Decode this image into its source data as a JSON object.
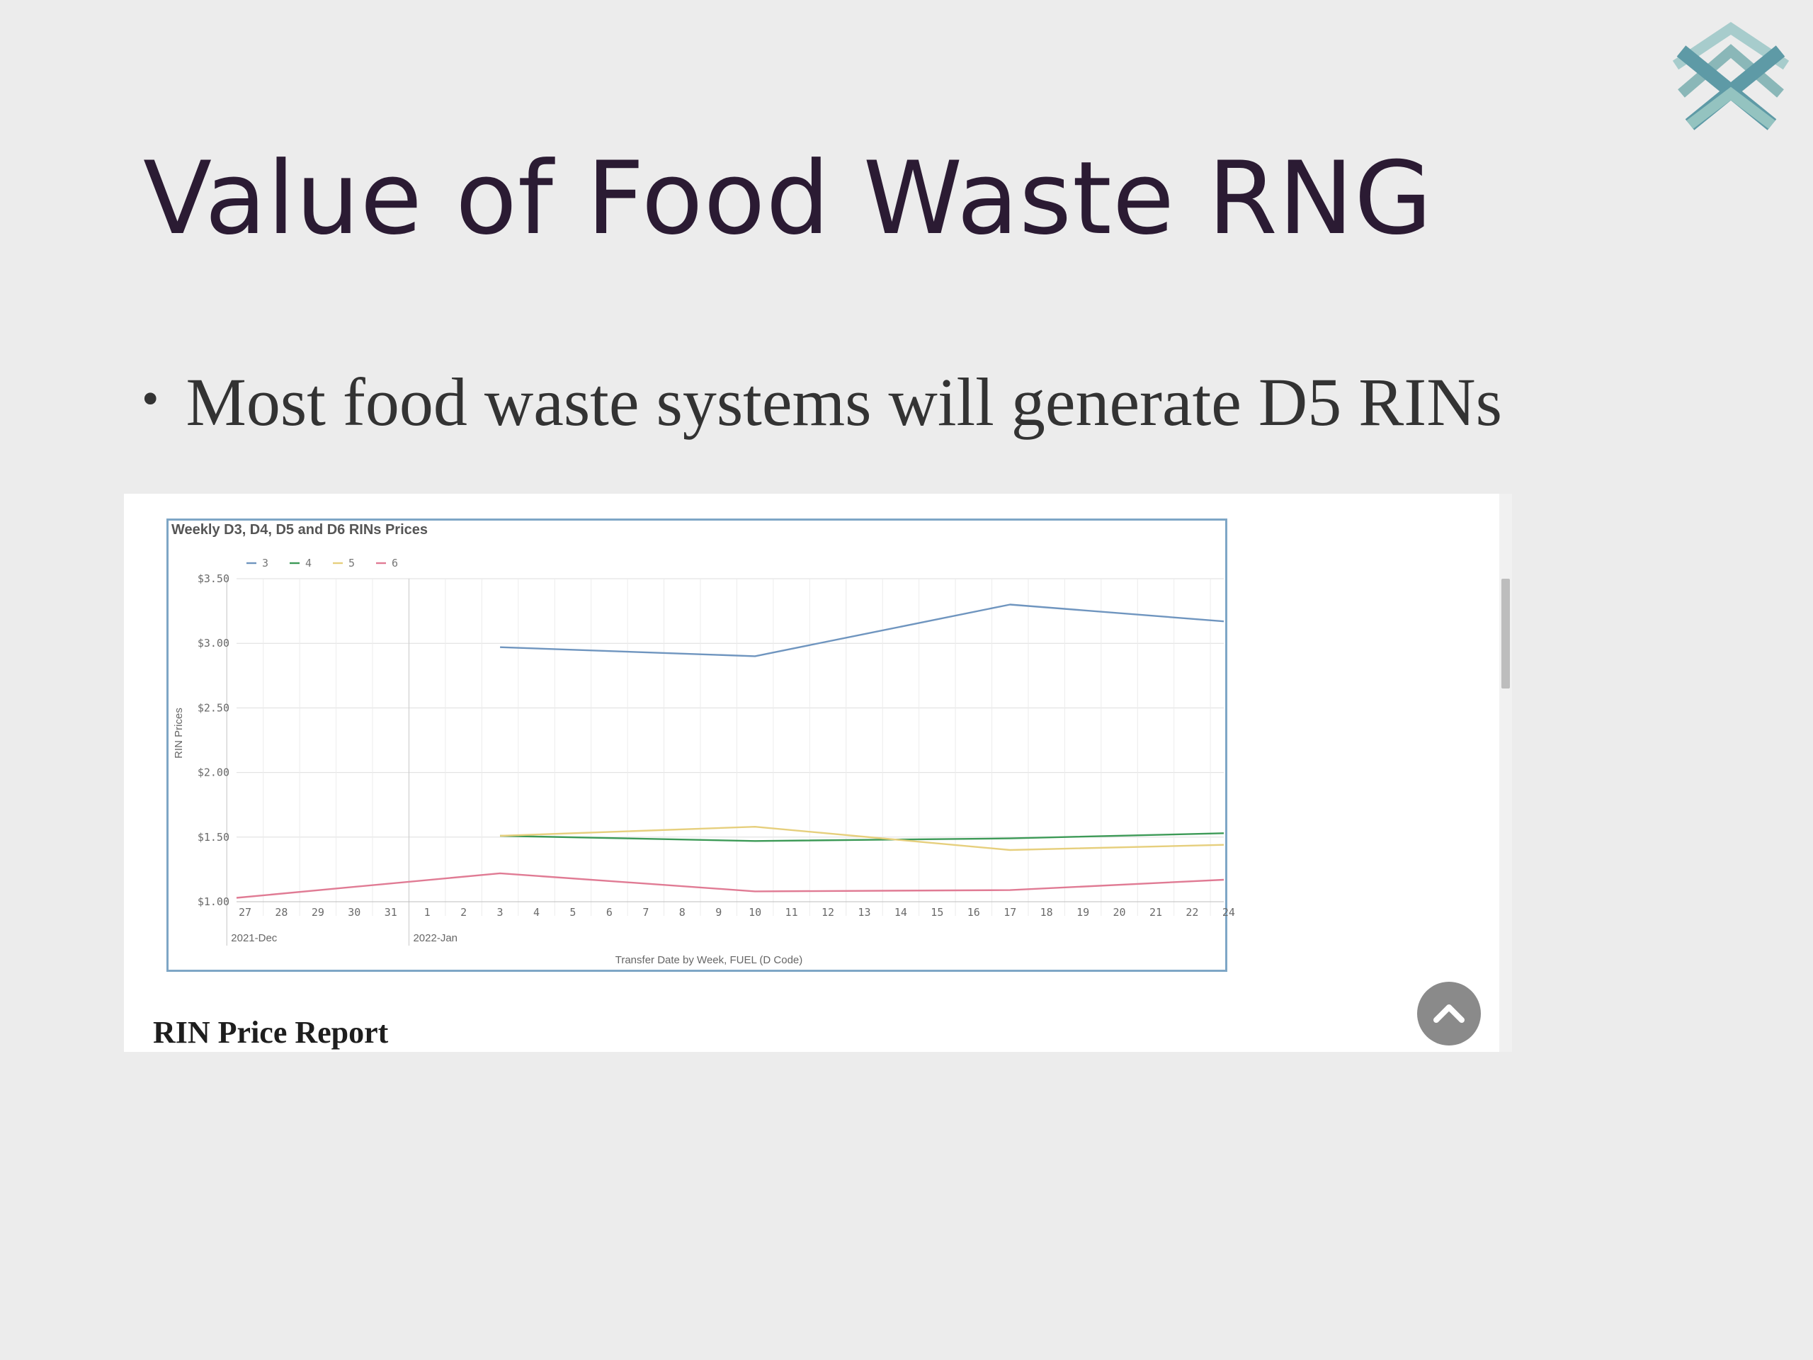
{
  "slide": {
    "title": "Value of Food Waste RNG",
    "bullet": "Most food waste systems will generate D5 RINs",
    "logo_icon": "chevron-crossed-logo-icon"
  },
  "report": {
    "title": "RIN Price Report",
    "scroll_top_icon": "chevron-up-icon"
  },
  "colors": {
    "title": "#2b1b33",
    "series_3": "#6f95bf",
    "series_4": "#3d9a57",
    "series_5": "#e6cf7d",
    "series_6": "#e07b94",
    "panel_border": "#7ea6c6"
  },
  "chart_data": {
    "type": "line",
    "title": "Weekly D3, D4, D5 and D6 RINs Prices",
    "xlabel": "Transfer Date by Week, FUEL (D Code)",
    "ylabel": "RIN Prices",
    "legend_position": "top-left",
    "grid": true,
    "ylim": [
      1.0,
      3.5
    ],
    "y_ticks": [
      "$1.00",
      "$1.50",
      "$2.00",
      "$2.50",
      "$3.00",
      "$3.50"
    ],
    "x_ticks": [
      "27",
      "28",
      "29",
      "30",
      "31",
      "1",
      "2",
      "3",
      "4",
      "5",
      "6",
      "7",
      "8",
      "9",
      "10",
      "11",
      "12",
      "13",
      "14",
      "15",
      "16",
      "17",
      "18",
      "19",
      "20",
      "21",
      "22",
      "24"
    ],
    "x_groups": [
      {
        "label": "2021-Dec",
        "start": "27"
      },
      {
        "label": "2022-Jan",
        "start": "1"
      }
    ],
    "series": [
      {
        "name": "3",
        "color": "#6f95bf",
        "points": [
          [
            "3",
            2.97
          ],
          [
            "10",
            2.9
          ],
          [
            "17",
            3.3
          ],
          [
            "24",
            3.17
          ]
        ]
      },
      {
        "name": "4",
        "color": "#3d9a57",
        "points": [
          [
            "3",
            1.51
          ],
          [
            "10",
            1.47
          ],
          [
            "17",
            1.49
          ],
          [
            "24",
            1.53
          ]
        ]
      },
      {
        "name": "5",
        "color": "#e6cf7d",
        "points": [
          [
            "3",
            1.51
          ],
          [
            "10",
            1.58
          ],
          [
            "17",
            1.4
          ],
          [
            "24",
            1.44
          ]
        ]
      },
      {
        "name": "6",
        "color": "#e07b94",
        "points": [
          [
            "27",
            1.03
          ],
          [
            "3",
            1.22
          ],
          [
            "10",
            1.08
          ],
          [
            "17",
            1.09
          ],
          [
            "24",
            1.17
          ]
        ]
      }
    ]
  }
}
